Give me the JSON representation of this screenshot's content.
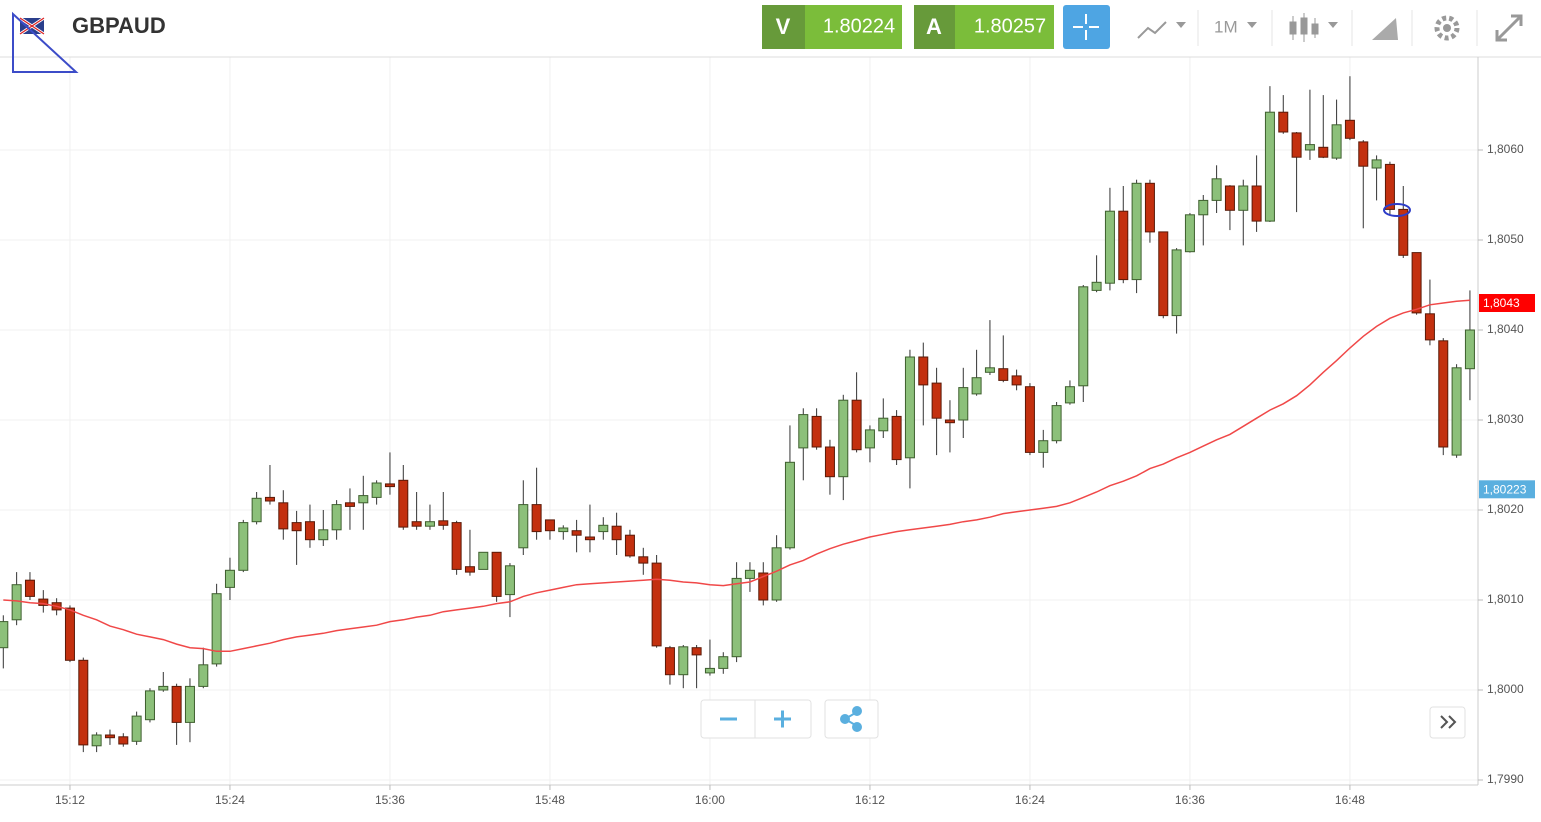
{
  "chart_data": {
    "type": "candlestick",
    "title": "GBPAUD",
    "toolbar": {
      "bid_label": "V",
      "bid": "1.80224",
      "ask_label": "A",
      "ask": "1.80257",
      "interval": "1M"
    },
    "x": [
      "15:07",
      "15:08",
      "15:09",
      "15:10",
      "15:11",
      "15:12",
      "15:13",
      "15:14",
      "15:15",
      "15:16",
      "15:17",
      "15:18",
      "15:19",
      "15:20",
      "15:21",
      "15:22",
      "15:23",
      "15:24",
      "15:25",
      "15:26",
      "15:27",
      "15:28",
      "15:29",
      "15:30",
      "15:31",
      "15:32",
      "15:33",
      "15:34",
      "15:35",
      "15:36",
      "15:37",
      "15:38",
      "15:39",
      "15:40",
      "15:41",
      "15:42",
      "15:43",
      "15:44",
      "15:45",
      "15:46",
      "15:47",
      "15:48",
      "15:49",
      "15:50",
      "15:51",
      "15:52",
      "15:53",
      "15:54",
      "15:55",
      "15:56",
      "15:57",
      "15:58",
      "15:59",
      "16:00",
      "16:01",
      "16:02",
      "16:03",
      "16:04",
      "16:05",
      "16:06",
      "16:07",
      "16:08",
      "16:09",
      "16:10",
      "16:11",
      "16:12",
      "16:13",
      "16:14",
      "16:15",
      "16:16",
      "16:17",
      "16:18",
      "16:19",
      "16:20",
      "16:21",
      "16:22",
      "16:23",
      "16:24",
      "16:25",
      "16:26",
      "16:27",
      "16:28",
      "16:29",
      "16:30",
      "16:31",
      "16:32",
      "16:33",
      "16:34",
      "16:35",
      "16:36",
      "16:37",
      "16:38",
      "16:39",
      "16:40",
      "16:41",
      "16:42",
      "16:43",
      "16:44",
      "16:45",
      "16:46",
      "16:47",
      "16:48",
      "16:49",
      "16:50",
      "16:51",
      "16:52",
      "16:53",
      "16:54",
      "16:55",
      "16:56",
      "16:57"
    ],
    "series": [
      {
        "type": "candlestick",
        "up_color": "#8cc07a",
        "down_color": "#c3300f",
        "open": [
          1.80047,
          1.80078,
          1.80122,
          1.80101,
          1.80097,
          1.80091,
          1.80033,
          1.79938,
          1.7995,
          1.79948,
          1.79943,
          1.79967,
          1.8,
          1.80004,
          1.79964,
          1.80004,
          1.80029,
          1.80114,
          1.80133,
          1.80187,
          1.80214,
          1.80208,
          1.80186,
          1.80187,
          1.80167,
          1.80178,
          1.80208,
          1.80208,
          1.80214,
          1.80229,
          1.80233,
          1.80187,
          1.80182,
          1.80188,
          1.80186,
          1.80137,
          1.80134,
          1.80153,
          1.80106,
          1.80158,
          1.80206,
          1.80189,
          1.80176,
          1.80177,
          1.8017,
          1.80176,
          1.80182,
          1.80172,
          1.80148,
          1.80141,
          1.80047,
          1.80017,
          1.80047,
          1.80019,
          1.80024,
          1.80037,
          1.80124,
          1.8013,
          1.801,
          1.80158,
          1.80269,
          1.80304,
          1.8027,
          1.80237,
          1.80322,
          1.80269,
          1.80288,
          1.80304,
          1.80258,
          1.8037,
          1.80341,
          1.803,
          1.803,
          1.80329,
          1.80353,
          1.80357,
          1.80349,
          1.80337,
          1.80264,
          1.80277,
          1.80319,
          1.80338,
          1.80444,
          1.80452,
          1.80532,
          1.80456,
          1.80563,
          1.80509,
          1.80416,
          1.80487,
          1.80528,
          1.80544,
          1.8056,
          1.80533,
          1.8056,
          1.80521,
          1.80642,
          1.80619,
          1.806,
          1.80603,
          1.80591,
          1.80633,
          1.80609,
          1.8058,
          1.80584,
          1.80534,
          1.80486,
          1.80418,
          1.80388,
          1.80261,
          1.80357
        ],
        "high": [
          1.80083,
          1.80131,
          1.80131,
          1.80111,
          1.80102,
          1.80094,
          1.80036,
          1.79953,
          1.79956,
          1.79952,
          1.79976,
          1.80002,
          1.8002,
          1.80007,
          1.80013,
          1.80047,
          1.80118,
          1.80147,
          1.80189,
          1.8022,
          1.8025,
          1.80222,
          1.80199,
          1.80206,
          1.802,
          1.80211,
          1.80224,
          1.80238,
          1.80233,
          1.80264,
          1.8025,
          1.8022,
          1.80206,
          1.8022,
          1.80188,
          1.80178,
          1.80153,
          1.80153,
          1.80141,
          1.80233,
          1.80247,
          1.80189,
          1.80183,
          1.80189,
          1.80206,
          1.80192,
          1.80197,
          1.80178,
          1.80158,
          1.8015,
          1.80049,
          1.8005,
          1.8005,
          1.80056,
          1.80042,
          1.80142,
          1.80142,
          1.80142,
          1.80172,
          1.80294,
          1.80313,
          1.80313,
          1.80278,
          1.80328,
          1.80353,
          1.80294,
          1.80324,
          1.80311,
          1.80378,
          1.80386,
          1.80358,
          1.80322,
          1.80358,
          1.80378,
          1.80411,
          1.80394,
          1.80356,
          1.80341,
          1.80289,
          1.8032,
          1.80344,
          1.8045,
          1.80483,
          1.80558,
          1.8056,
          1.80567,
          1.80567,
          1.80509,
          1.80491,
          1.8053,
          1.8055,
          1.80583,
          1.80561,
          1.80567,
          1.80594,
          1.80671,
          1.80661,
          1.8062,
          1.80667,
          1.80661,
          1.80656,
          1.80682,
          1.80611,
          1.80594,
          1.80587,
          1.8056,
          1.80486,
          1.80456,
          1.80391,
          1.80362,
          1.80444
        ],
        "low": [
          1.80024,
          1.80072,
          1.801,
          1.80086,
          1.80083,
          1.80031,
          1.79931,
          1.79931,
          1.79939,
          1.79937,
          1.79939,
          1.79964,
          1.79998,
          1.79939,
          1.79942,
          1.80002,
          1.80026,
          1.801,
          1.80131,
          1.80184,
          1.80206,
          1.80167,
          1.80139,
          1.80158,
          1.8016,
          1.80167,
          1.80178,
          1.80178,
          1.80206,
          1.80217,
          1.80178,
          1.80178,
          1.80178,
          1.80178,
          1.80128,
          1.80127,
          1.80134,
          1.80098,
          1.80081,
          1.8015,
          1.80167,
          1.80167,
          1.80167,
          1.80153,
          1.80153,
          1.80167,
          1.8015,
          1.80147,
          1.80128,
          1.80047,
          1.80006,
          1.80002,
          1.80002,
          1.80016,
          1.80018,
          1.80031,
          1.80109,
          1.80094,
          1.80098,
          1.80156,
          1.80233,
          1.80267,
          1.80217,
          1.80211,
          1.80264,
          1.80253,
          1.8028,
          1.8025,
          1.80224,
          1.80294,
          1.80261,
          1.80264,
          1.8028,
          1.80327,
          1.8035,
          1.80342,
          1.80333,
          1.80261,
          1.80247,
          1.80274,
          1.80317,
          1.8032,
          1.80442,
          1.80444,
          1.80452,
          1.80441,
          1.80497,
          1.80413,
          1.80396,
          1.80486,
          1.80494,
          1.8053,
          1.80511,
          1.80494,
          1.80509,
          1.8052,
          1.80618,
          1.80531,
          1.80589,
          1.80591,
          1.80589,
          1.80611,
          1.80513,
          1.80544,
          1.80528,
          1.8048,
          1.80417,
          1.80383,
          1.80261,
          1.80258,
          1.80322
        ],
        "close": [
          1.80076,
          1.80117,
          1.80104,
          1.80094,
          1.80089,
          1.80033,
          1.79939,
          1.7995,
          1.79947,
          1.7994,
          1.79971,
          1.79999,
          1.80004,
          1.79964,
          1.80004,
          1.80028,
          1.80107,
          1.80133,
          1.80186,
          1.80213,
          1.8021,
          1.80179,
          1.80177,
          1.80167,
          1.80178,
          1.80206,
          1.80204,
          1.80216,
          1.8023,
          1.80226,
          1.80181,
          1.80182,
          1.80187,
          1.80183,
          1.80134,
          1.80131,
          1.80153,
          1.80104,
          1.80138,
          1.80206,
          1.80176,
          1.80177,
          1.8018,
          1.80172,
          1.80167,
          1.80183,
          1.80167,
          1.80149,
          1.80141,
          1.80049,
          1.80017,
          1.80048,
          1.80039,
          1.80024,
          1.80037,
          1.80124,
          1.80133,
          1.801,
          1.80158,
          1.80253,
          1.80306,
          1.8027,
          1.80237,
          1.80322,
          1.80267,
          1.80289,
          1.80302,
          1.80256,
          1.8037,
          1.80339,
          1.80302,
          1.80297,
          1.80336,
          1.80347,
          1.80358,
          1.80344,
          1.80339,
          1.80264,
          1.80277,
          1.80316,
          1.80337,
          1.80448,
          1.80453,
          1.80532,
          1.80456,
          1.80563,
          1.80509,
          1.80416,
          1.80489,
          1.80528,
          1.80544,
          1.80568,
          1.80533,
          1.8056,
          1.80521,
          1.80642,
          1.8062,
          1.80592,
          1.80606,
          1.80592,
          1.80628,
          1.80613,
          1.80582,
          1.80589,
          1.80534,
          1.80483,
          1.80419,
          1.80389,
          1.8027,
          1.80358,
          1.804
        ]
      },
      {
        "type": "line",
        "color": "#f04848",
        "values": [
          1.801,
          1.80099,
          1.80097,
          1.80096,
          1.80093,
          1.80089,
          1.80083,
          1.80078,
          1.80071,
          1.80067,
          1.80062,
          1.80059,
          1.80056,
          1.80051,
          1.80047,
          1.80046,
          1.80043,
          1.80043,
          1.80046,
          1.80049,
          1.80052,
          1.80056,
          1.80059,
          1.80061,
          1.80063,
          1.80066,
          1.80068,
          1.8007,
          1.80072,
          1.80076,
          1.80078,
          1.80081,
          1.80083,
          1.80087,
          1.80089,
          1.80091,
          1.80093,
          1.80096,
          1.80098,
          1.80104,
          1.80108,
          1.80111,
          1.80114,
          1.80117,
          1.80118,
          1.80119,
          1.8012,
          1.80121,
          1.80122,
          1.80123,
          1.80122,
          1.8012,
          1.80119,
          1.80117,
          1.80116,
          1.80118,
          1.8012,
          1.80126,
          1.80132,
          1.80139,
          1.80144,
          1.80151,
          1.80157,
          1.80162,
          1.80166,
          1.8017,
          1.80173,
          1.80176,
          1.80178,
          1.8018,
          1.80182,
          1.80184,
          1.80187,
          1.80189,
          1.80192,
          1.80196,
          1.80198,
          1.802,
          1.80202,
          1.80204,
          1.80208,
          1.80214,
          1.8022,
          1.80227,
          1.80232,
          1.80238,
          1.80246,
          1.80251,
          1.80258,
          1.80264,
          1.80271,
          1.80278,
          1.80284,
          1.80293,
          1.80302,
          1.80311,
          1.80318,
          1.80327,
          1.80339,
          1.80353,
          1.80366,
          1.8038,
          1.80393,
          1.80404,
          1.80413,
          1.80419,
          1.80423,
          1.80428,
          1.8043,
          1.80432,
          1.80433
        ]
      }
    ],
    "price_tags": [
      {
        "value": 1.8043,
        "label": "1,8043",
        "color": "#ff0000"
      },
      {
        "value": 1.80223,
        "label": "1,80223",
        "color": "#5aafdf"
      }
    ],
    "ylim": [
      1.79895,
      1.807
    ],
    "yticks": [
      {
        "value": 1.799,
        "label": "1,7990"
      },
      {
        "value": 1.8,
        "label": "1,8000"
      },
      {
        "value": 1.801,
        "label": "1,8010"
      },
      {
        "value": 1.802,
        "label": "1,8020"
      },
      {
        "value": 1.803,
        "label": "1,8030"
      },
      {
        "value": 1.804,
        "label": "1,8040"
      },
      {
        "value": 1.805,
        "label": "1,8050"
      },
      {
        "value": 1.806,
        "label": "1,8060"
      }
    ],
    "xticks": [
      "15:12",
      "15:24",
      "15:36",
      "15:48",
      "16:00",
      "16:12",
      "16:24",
      "16:36",
      "16:48"
    ],
    "grid": true
  }
}
